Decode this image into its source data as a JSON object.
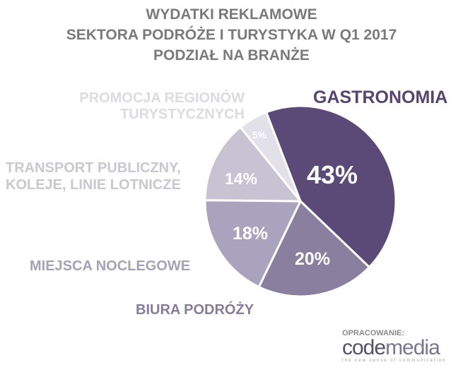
{
  "title": {
    "line1": "WYDATKI REKLAMOWE",
    "line2": "SEKTORA PODRÓŻE I TURYSTYKA W Q1 2017",
    "line3": "PODZIAŁ NA BRANŻE"
  },
  "labels": {
    "gastronomia": "GASTRONOMIA",
    "promocja_1": "PROMOCJA REGIONÓW",
    "promocja_2": "TURYSTYCZNYCH",
    "transport_1": "TRANSPORT PUBLICZNY,",
    "transport_2": "KOLEJE, LINIE LOTNICZE",
    "miejsca": "MIEJSCA NOCLEGOWE",
    "biura": "BIURA PODRÓŻY"
  },
  "slices": [
    {
      "name": "GASTRONOMIA",
      "pct": "43%",
      "color": "#5b4a78"
    },
    {
      "name": "BIURA PODRÓŻY",
      "pct": "20%",
      "color": "#8b7fa0"
    },
    {
      "name": "MIEJSCA NOCLEGOWE",
      "pct": "18%",
      "color": "#aaa3bd"
    },
    {
      "name": "TRANSPORT PUBLICZNY, KOLEJE, LINIE LOTNICZE",
      "pct": "14%",
      "color": "#c7c3d3"
    },
    {
      "name": "PROMOCJA REGIONÓW TURYSTYCZNYCH",
      "pct": "5%",
      "color": "#e2e0e8"
    }
  ],
  "footer": {
    "credit": "OPRACOWANIE:",
    "logo_code": "code",
    "logo_media": "media",
    "tagline": "the new sense of communication"
  },
  "chart_data": {
    "type": "pie",
    "title": "WYDATKI REKLAMOWE SEKTORA PODRÓŻE I TURYSTYKA W Q1 2017 PODZIAŁ NA BRANŻE",
    "categories": [
      "GASTRONOMIA",
      "BIURA PODRÓŻY",
      "MIEJSCA NOCLEGOWE",
      "TRANSPORT PUBLICZNY, KOLEJE, LINIE LOTNICZE",
      "PROMOCJA REGIONÓW TURYSTYCZNYCH"
    ],
    "values": [
      43,
      20,
      18,
      14,
      5
    ],
    "unit": "%"
  }
}
